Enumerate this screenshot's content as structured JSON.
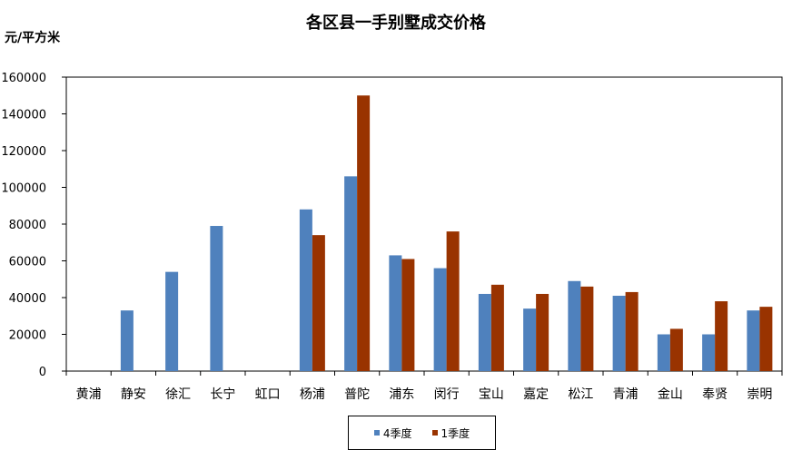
{
  "chart_data": {
    "type": "bar",
    "title": "各区县一手别墅成交价格",
    "ylabel": "元/平方米",
    "xlabel": "",
    "ylim": [
      0,
      160000
    ],
    "yticks": [
      0,
      20000,
      40000,
      60000,
      80000,
      100000,
      120000,
      140000,
      160000
    ],
    "grid": false,
    "legend_position": "bottom",
    "categories": [
      "黄浦",
      "静安",
      "徐汇",
      "长宁",
      "虹口",
      "杨浦",
      "普陀",
      "浦东",
      "闵行",
      "宝山",
      "嘉定",
      "松江",
      "青浦",
      "金山",
      "奉贤",
      "崇明"
    ],
    "series": [
      {
        "name": "4季度",
        "color": "#4F81BD",
        "values": [
          0,
          33000,
          54000,
          79000,
          0,
          88000,
          106000,
          63000,
          56000,
          42000,
          34000,
          49000,
          41000,
          20000,
          20000,
          33000
        ]
      },
      {
        "name": "1季度",
        "color": "#993300",
        "values": [
          0,
          0,
          0,
          0,
          0,
          74000,
          150000,
          61000,
          76000,
          47000,
          42000,
          46000,
          43000,
          23000,
          38000,
          35000
        ]
      }
    ]
  }
}
